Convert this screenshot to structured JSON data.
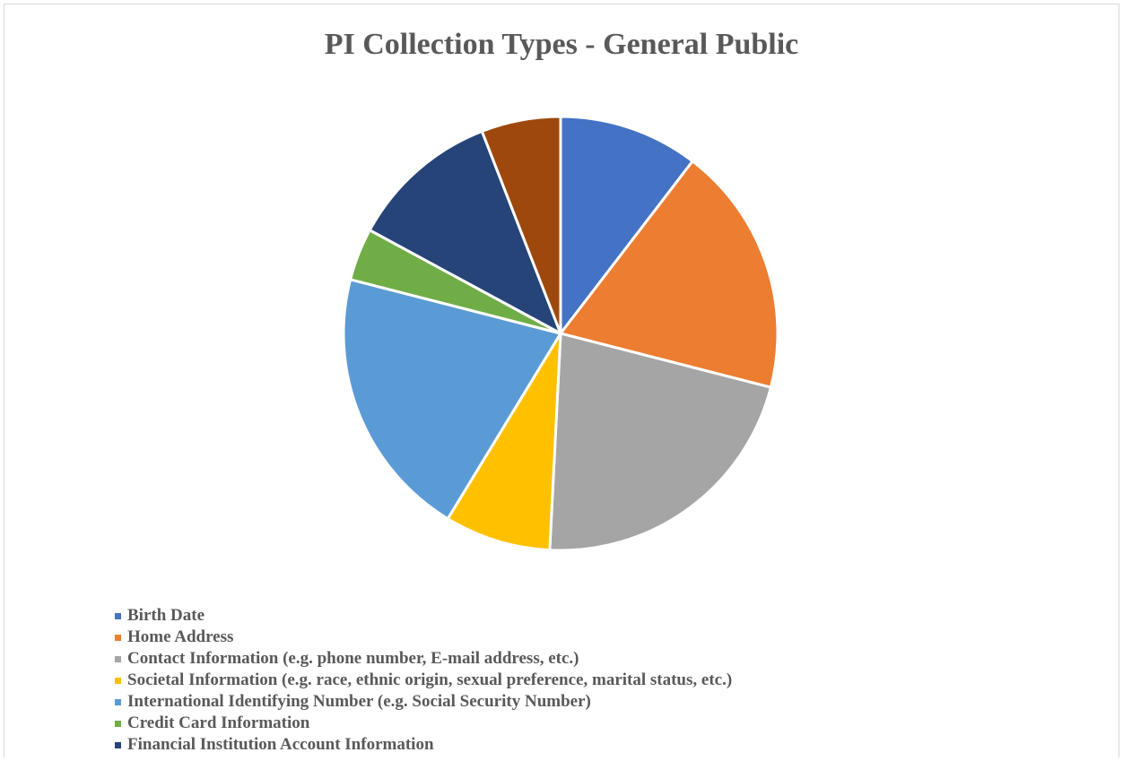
{
  "chart_data": {
    "type": "pie",
    "title": "PI Collection Types - General Public",
    "legend_position": "bottom",
    "slices": [
      {
        "label": "Birth Date",
        "value": 10.4,
        "color": "#4472C4",
        "in_legend": true
      },
      {
        "label": "Home Address",
        "value": 18.6,
        "color": "#ED7D31",
        "in_legend": true
      },
      {
        "label": "Contact Information (e.g. phone number, E-mail address, etc.)",
        "value": 21.8,
        "color": "#A5A5A5",
        "in_legend": true
      },
      {
        "label": "Societal Information (e.g. race, ethnic origin, sexual preference, marital status, etc.)",
        "value": 7.9,
        "color": "#FFC000",
        "in_legend": true
      },
      {
        "label": "International Identifying Number (e.g. Social Security Number)",
        "value": 20.3,
        "color": "#5B9BD5",
        "in_legend": true
      },
      {
        "label": "Credit Card Information",
        "value": 3.9,
        "color": "#70AD47",
        "in_legend": true
      },
      {
        "label": "Financial Institution Account Information",
        "value": 11.2,
        "color": "#264478",
        "in_legend": true
      },
      {
        "label": "",
        "value": 5.9,
        "color": "#9E480E",
        "in_legend": false
      }
    ]
  }
}
